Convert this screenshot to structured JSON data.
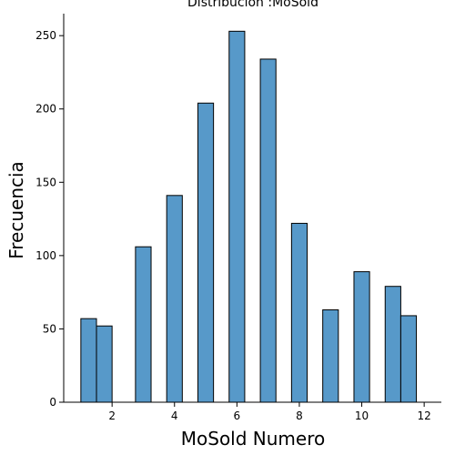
{
  "chart_data": {
    "type": "bar",
    "title": "Distribución :MoSold",
    "xlabel": "MoSold Numero",
    "ylabel": "Frecuencia",
    "xlim": [
      0.45,
      12.55
    ],
    "ylim": [
      0,
      265
    ],
    "x_ticks": [
      2,
      4,
      6,
      8,
      10,
      12
    ],
    "y_ticks": [
      0,
      50,
      100,
      150,
      200,
      250
    ],
    "bin_width": 0.5,
    "bin_starts": [
      1.0,
      1.5,
      2.75,
      3.75,
      4.75,
      5.75,
      6.75,
      7.75,
      8.75,
      9.75,
      10.75,
      11.25
    ],
    "values": [
      57,
      52,
      106,
      141,
      204,
      253,
      234,
      122,
      63,
      89,
      79,
      59
    ],
    "bar_color": "#5799c9",
    "edge_color": "#000000",
    "grid": false
  }
}
